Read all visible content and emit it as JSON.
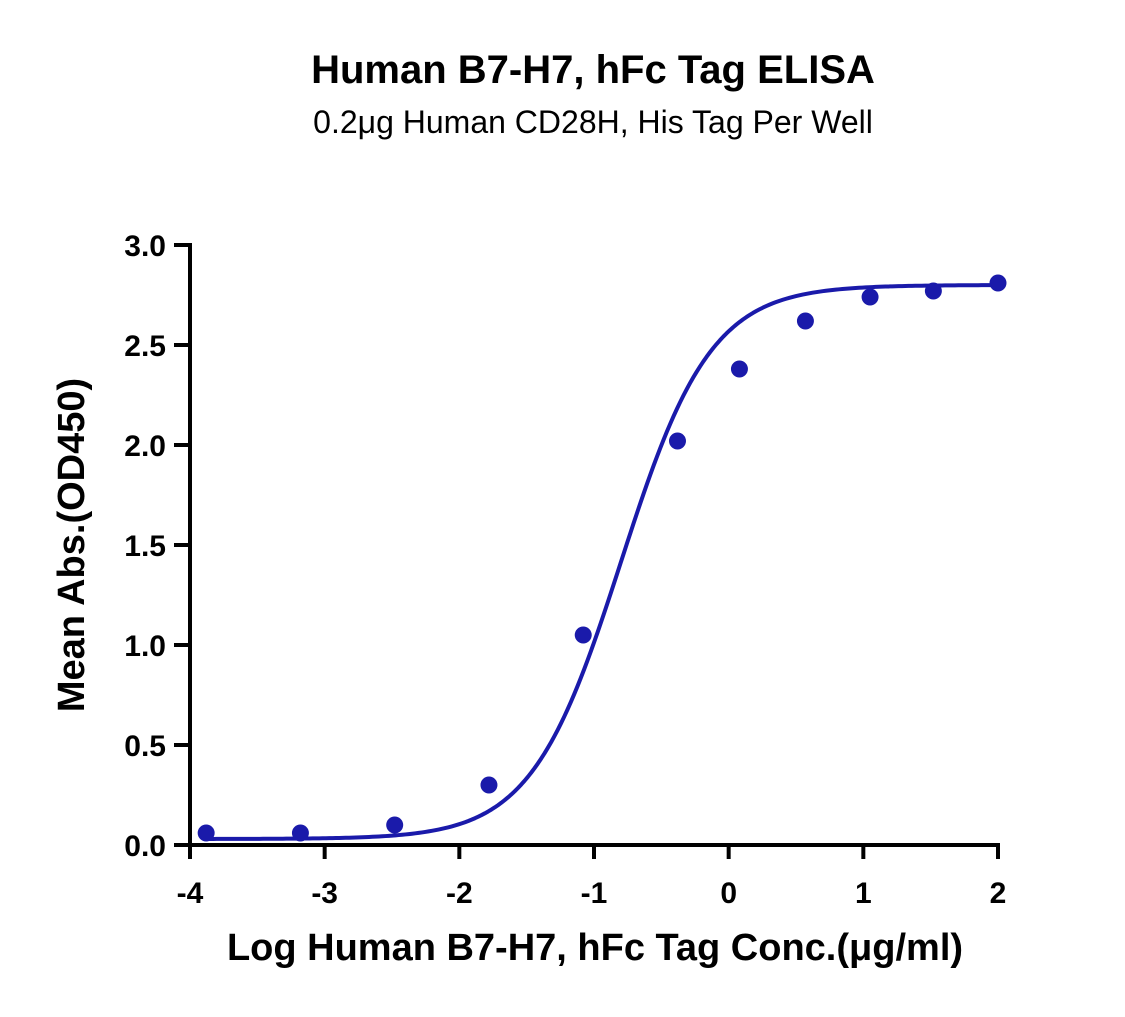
{
  "chart_data": {
    "type": "scatter",
    "title": "Human B7-H7, hFc Tag ELISA",
    "subtitle": "0.2μg Human CD28H, His Tag Per Well",
    "xlabel": "Log Human B7-H7, hFc Tag Conc.(μg/ml)",
    "ylabel": "Mean Abs.(OD450)",
    "xlim": [
      -4,
      2
    ],
    "ylim": [
      0,
      3
    ],
    "x_ticks": [
      -4,
      -3,
      -2,
      -1,
      0,
      1,
      2
    ],
    "x_tick_labels": [
      "-4",
      "-3",
      "-2",
      "-1",
      "0",
      "1",
      "2"
    ],
    "y_ticks": [
      0,
      0.5,
      1,
      1.5,
      2,
      2.5,
      3
    ],
    "y_tick_labels": [
      "0.0",
      "0.5",
      "1.0",
      "1.5",
      "2.0",
      "2.5",
      "3.0"
    ],
    "grid": false,
    "legend": "none",
    "series": [
      {
        "color": "#1a1aaa",
        "points": [
          {
            "x": -3.88,
            "y": 0.06
          },
          {
            "x": -3.18,
            "y": 0.06
          },
          {
            "x": -2.48,
            "y": 0.1
          },
          {
            "x": -1.78,
            "y": 0.3
          },
          {
            "x": -1.08,
            "y": 1.05
          },
          {
            "x": -0.38,
            "y": 2.02
          },
          {
            "x": 0.08,
            "y": 2.38
          },
          {
            "x": 0.57,
            "y": 2.62
          },
          {
            "x": 1.05,
            "y": 2.74
          },
          {
            "x": 1.52,
            "y": 2.77
          },
          {
            "x": 2.0,
            "y": 2.81
          }
        ],
        "fit": {
          "model": "4PL",
          "bottom": 0.03,
          "top": 2.8,
          "logEC50": -0.8,
          "hillslope": 1.3,
          "x_range": [
            -3.9,
            2.0
          ]
        }
      }
    ]
  }
}
